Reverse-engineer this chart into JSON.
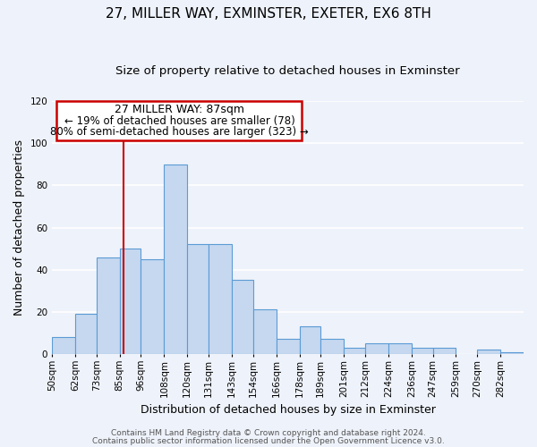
{
  "title": "27, MILLER WAY, EXMINSTER, EXETER, EX6 8TH",
  "subtitle": "Size of property relative to detached houses in Exminster",
  "xlabel": "Distribution of detached houses by size in Exminster",
  "ylabel": "Number of detached properties",
  "bar_left_edges": [
    50,
    62,
    73,
    85,
    96,
    108,
    120,
    131,
    143,
    154,
    166,
    178,
    189,
    201,
    212,
    224,
    236,
    247,
    259,
    270,
    282
  ],
  "bar_heights": [
    8,
    19,
    46,
    50,
    45,
    90,
    52,
    52,
    35,
    21,
    7,
    13,
    7,
    3,
    5,
    5,
    3,
    3,
    0,
    2,
    1
  ],
  "tick_labels": [
    "50sqm",
    "62sqm",
    "73sqm",
    "85sqm",
    "96sqm",
    "108sqm",
    "120sqm",
    "131sqm",
    "143sqm",
    "154sqm",
    "166sqm",
    "178sqm",
    "189sqm",
    "201sqm",
    "212sqm",
    "224sqm",
    "236sqm",
    "247sqm",
    "259sqm",
    "270sqm",
    "282sqm"
  ],
  "ylim": [
    0,
    120
  ],
  "yticks": [
    0,
    20,
    40,
    60,
    80,
    100,
    120
  ],
  "bar_color": "#c5d8f0",
  "bar_edge_color": "#5b9bd5",
  "vline_x": 87,
  "vline_color": "#cc0000",
  "annotation_title": "27 MILLER WAY: 87sqm",
  "annotation_line1": "← 19% of detached houses are smaller (78)",
  "annotation_line2": "80% of semi-detached houses are larger (323) →",
  "annotation_box_color": "#cc0000",
  "footer_line1": "Contains HM Land Registry data © Crown copyright and database right 2024.",
  "footer_line2": "Contains public sector information licensed under the Open Government Licence v3.0.",
  "background_color": "#eef2fa",
  "grid_color": "#ffffff",
  "title_fontsize": 11,
  "subtitle_fontsize": 9.5,
  "axis_label_fontsize": 9,
  "tick_fontsize": 7.5,
  "footer_fontsize": 6.5,
  "annotation_title_fontsize": 9,
  "annotation_text_fontsize": 8.5
}
